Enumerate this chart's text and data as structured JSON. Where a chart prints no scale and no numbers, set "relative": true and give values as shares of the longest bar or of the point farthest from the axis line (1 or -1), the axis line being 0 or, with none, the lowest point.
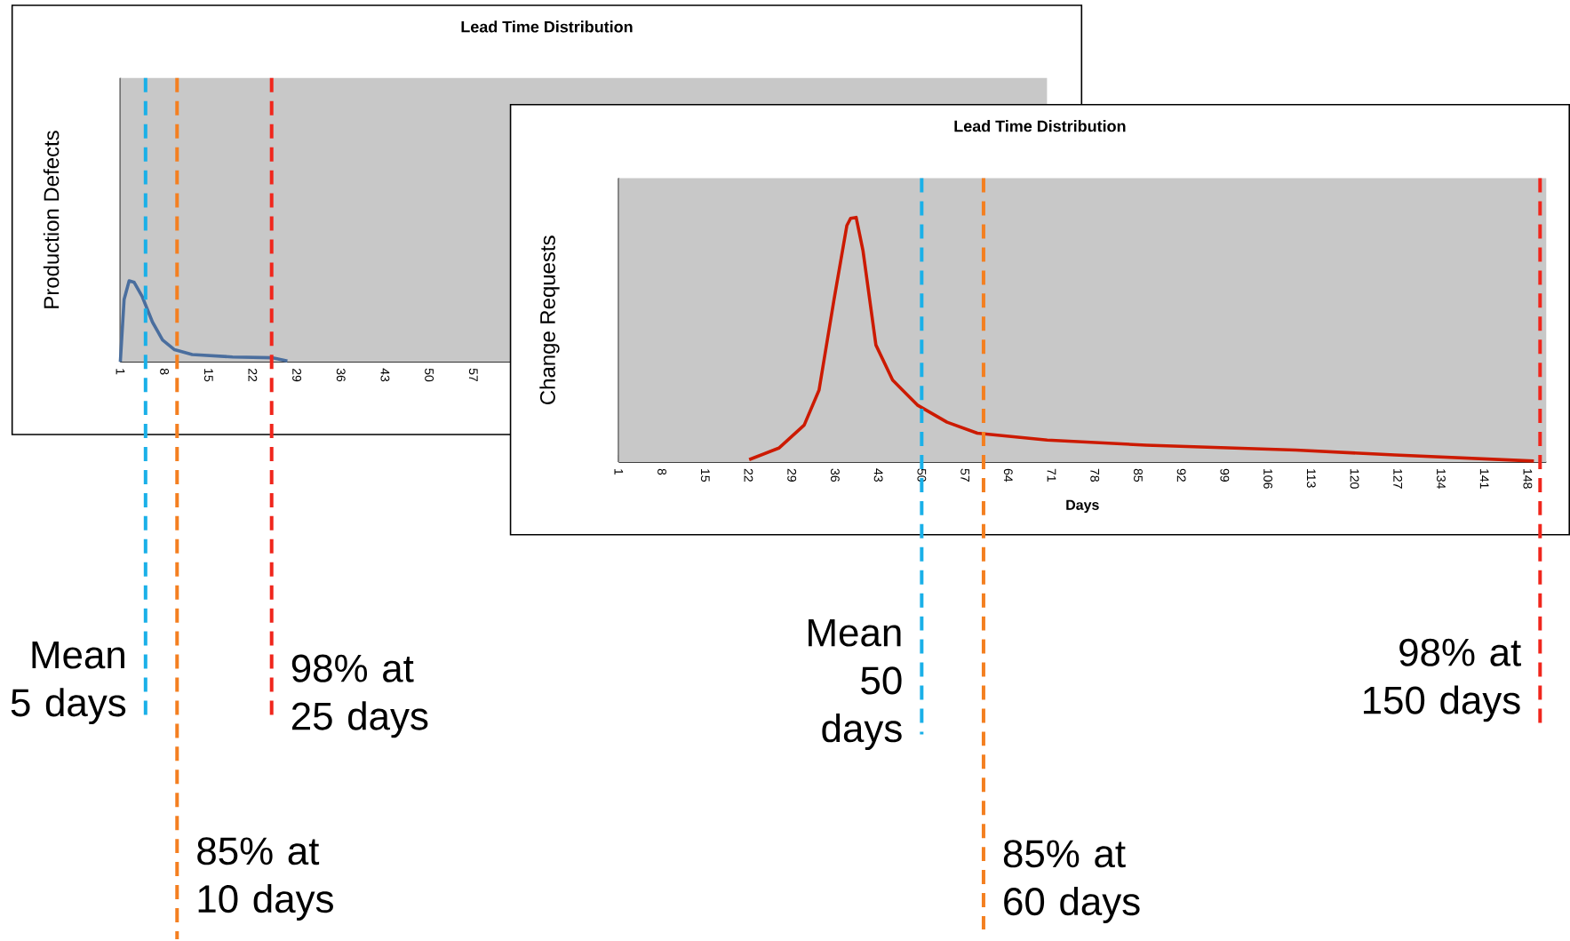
{
  "chart_data": [
    {
      "type": "line",
      "title": "Lead Time Distribution",
      "ylabel": "Production Defects",
      "relative": true,
      "x": [
        1,
        1.6,
        2.4,
        3.2,
        4.5,
        6.1,
        7.7,
        9.6,
        12.4,
        18.8,
        25.2,
        27.5
      ],
      "series": [
        {
          "color": "#4a6e9e",
          "values": [
            0,
            0.77,
            1,
            0.98,
            0.8,
            0.49,
            0.27,
            0.15,
            0.09,
            0.06,
            0.05,
            0.01
          ]
        }
      ],
      "xlim": [
        1,
        148
      ],
      "xticks": [
        1,
        8,
        15,
        22,
        29,
        36,
        43,
        50,
        57
      ],
      "ref_lines": [
        {
          "axis": "x",
          "value": 5,
          "label": "Mean 5 days",
          "color": "#1ab0e8",
          "line_style": "dashed"
        },
        {
          "axis": "x",
          "value": 10,
          "label": "85% at 10 days",
          "color": "#f47f20",
          "line_style": "dashed"
        },
        {
          "axis": "x",
          "value": 25,
          "label": "98% at 25 days",
          "color": "#f0261c",
          "line_style": "dashed"
        }
      ]
    },
    {
      "type": "line",
      "title": "Lead Time Distribution",
      "xlabel": "Days",
      "ylabel": "Change Requests",
      "relative": true,
      "x": [
        22.1,
        26.9,
        31,
        33.4,
        35.8,
        37.9,
        38.5,
        39.4,
        40.5,
        42.6,
        45.3,
        49.3,
        54.1,
        59,
        70.3,
        86.3,
        110.5,
        126.5,
        149
      ],
      "series": [
        {
          "color": "#cc1a00",
          "values": [
            0.01,
            0.057,
            0.151,
            0.294,
            0.661,
            0.967,
            0.996,
            1,
            0.865,
            0.478,
            0.335,
            0.233,
            0.163,
            0.118,
            0.09,
            0.069,
            0.049,
            0.029,
            0.004
          ]
        }
      ],
      "xlim": [
        1,
        151
      ],
      "xticks": [
        1,
        8,
        15,
        22,
        29,
        36,
        43,
        50,
        57,
        64,
        71,
        78,
        85,
        92,
        99,
        106,
        113,
        120,
        127,
        134,
        141,
        148
      ],
      "ref_lines": [
        {
          "axis": "x",
          "value": 50,
          "label": "Mean 50 days",
          "color": "#1ab0e8",
          "line_style": "dashed"
        },
        {
          "axis": "x",
          "value": 60,
          "label": "85% at 60 days",
          "color": "#f47f20",
          "line_style": "dashed"
        },
        {
          "axis": "x",
          "value": 150,
          "label": "98% at 150 days",
          "color": "#f0261c",
          "line_style": "dashed"
        }
      ]
    }
  ]
}
